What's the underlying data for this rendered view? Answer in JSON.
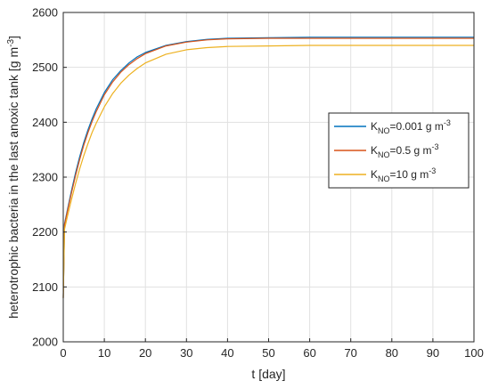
{
  "chart_data": {
    "type": "line",
    "xlabel": "t [day]",
    "ylabel": "heterotrophic bacteria in the last anoxic tank [g m⁻³]",
    "xlim": [
      0,
      100
    ],
    "ylim": [
      2000,
      2600
    ],
    "xticks": [
      0,
      10,
      20,
      30,
      40,
      50,
      60,
      70,
      80,
      90,
      100
    ],
    "yticks": [
      2000,
      2100,
      2200,
      2300,
      2400,
      2500,
      2600
    ],
    "grid": true,
    "legend_position": "right",
    "series": [
      {
        "name": "K_NO=0.001 g m^-3",
        "legend": {
          "base": "K",
          "sub": "NO",
          "rest": "=0.001 g m",
          "sup": "-3"
        },
        "color": "#0072BD",
        "x": [
          0,
          0.3,
          1,
          2,
          3,
          4,
          5,
          6,
          7,
          8,
          10,
          12,
          14,
          16,
          18,
          20,
          25,
          30,
          35,
          40,
          50,
          60,
          70,
          80,
          90,
          100
        ],
        "y": [
          2080,
          2215,
          2240,
          2275,
          2308,
          2337,
          2363,
          2386,
          2406,
          2424,
          2454,
          2477,
          2494,
          2508,
          2519,
          2527,
          2540,
          2547,
          2551,
          2553,
          2554,
          2555,
          2555,
          2555,
          2555,
          2555
        ]
      },
      {
        "name": "K_NO=0.5 g m^-3",
        "legend": {
          "base": "K",
          "sub": "NO",
          "rest": "=0.5 g m",
          "sup": "-3"
        },
        "color": "#D95319",
        "x": [
          0,
          0.3,
          1,
          2,
          3,
          4,
          5,
          6,
          7,
          8,
          10,
          12,
          14,
          16,
          18,
          20,
          25,
          30,
          35,
          40,
          50,
          60,
          70,
          80,
          90,
          100
        ],
        "y": [
          2080,
          2213,
          2237,
          2271,
          2303,
          2332,
          2358,
          2381,
          2401,
          2419,
          2450,
          2473,
          2491,
          2505,
          2516,
          2525,
          2539,
          2546,
          2550,
          2552,
          2553,
          2553,
          2553,
          2553,
          2553,
          2553
        ]
      },
      {
        "name": "K_NO=10 g m^-3",
        "legend": {
          "base": "K",
          "sub": "NO",
          "rest": "=10 g m",
          "sup": "-3"
        },
        "color": "#EDB120",
        "x": [
          0,
          0.3,
          1,
          2,
          3,
          4,
          5,
          6,
          7,
          8,
          10,
          12,
          14,
          16,
          18,
          20,
          25,
          30,
          35,
          40,
          50,
          60,
          70,
          80,
          90,
          100
        ],
        "y": [
          2080,
          2205,
          2228,
          2259,
          2288,
          2315,
          2339,
          2361,
          2381,
          2398,
          2428,
          2452,
          2471,
          2486,
          2498,
          2508,
          2524,
          2532,
          2536,
          2538,
          2539,
          2540,
          2540,
          2540,
          2540,
          2540
        ]
      }
    ]
  }
}
